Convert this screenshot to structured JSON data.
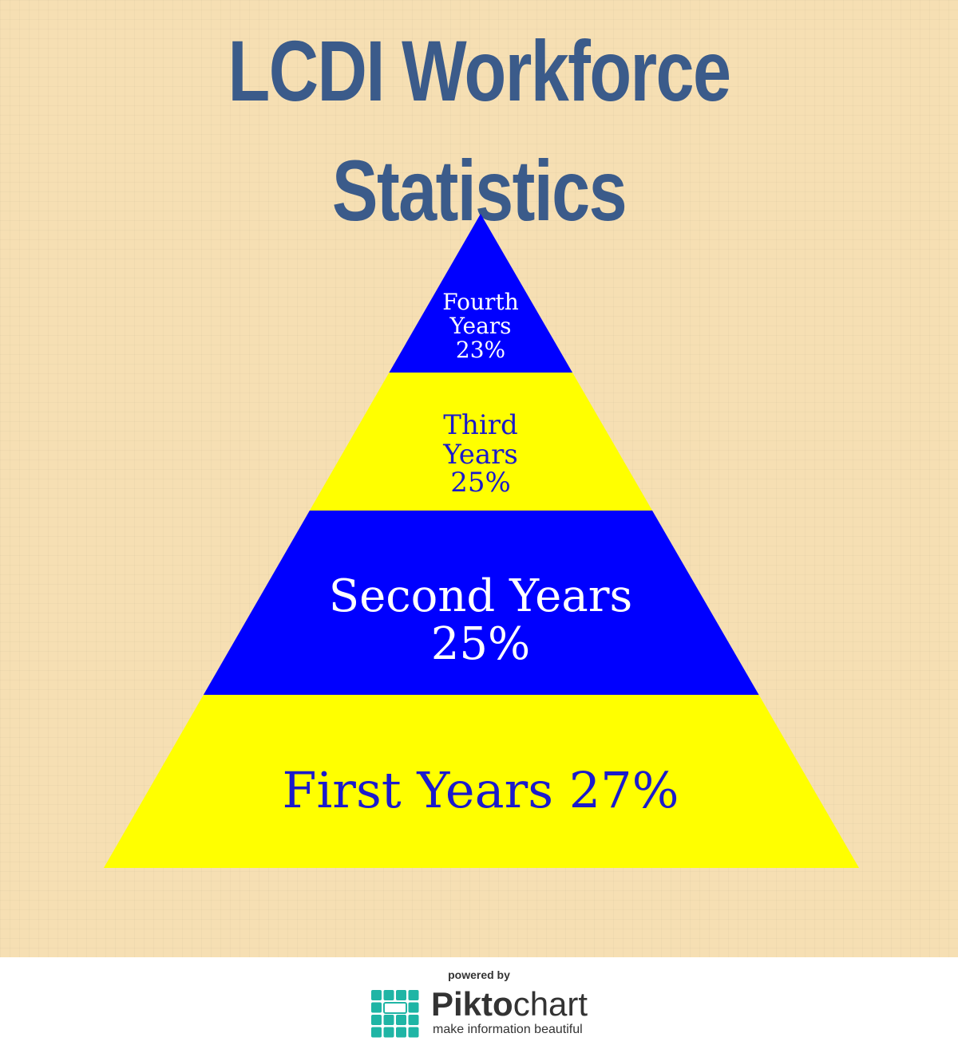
{
  "chart_data": {
    "type": "pyramid",
    "title": "LCDI Workforce Statistics",
    "tiers": [
      {
        "label_lines": [
          "Fourth",
          "Years",
          "23%"
        ],
        "category": "Fourth Years",
        "value": 23,
        "fill": "#0000ff",
        "text_color": "#ffffff"
      },
      {
        "label_lines": [
          "Third",
          "Years",
          "25%"
        ],
        "category": "Third Years",
        "value": 25,
        "fill": "#ffff00",
        "text_color": "#1a1acc"
      },
      {
        "label_lines": [
          "Second Years",
          "25%"
        ],
        "category": "Second Years",
        "value": 25,
        "fill": "#0000ff",
        "text_color": "#ffffff"
      },
      {
        "label_lines": [
          "First Years 27%"
        ],
        "category": "First Years",
        "value": 27,
        "fill": "#ffff00",
        "text_color": "#1a1acc"
      }
    ]
  },
  "footer": {
    "powered_by": "powered by",
    "brand_bold": "Pikto",
    "brand_light": "chart",
    "tagline": "make information beautiful",
    "logo_color": "#1fb5a5"
  },
  "colors": {
    "background": "#f6dfb3",
    "title": "#3b5b8a"
  }
}
